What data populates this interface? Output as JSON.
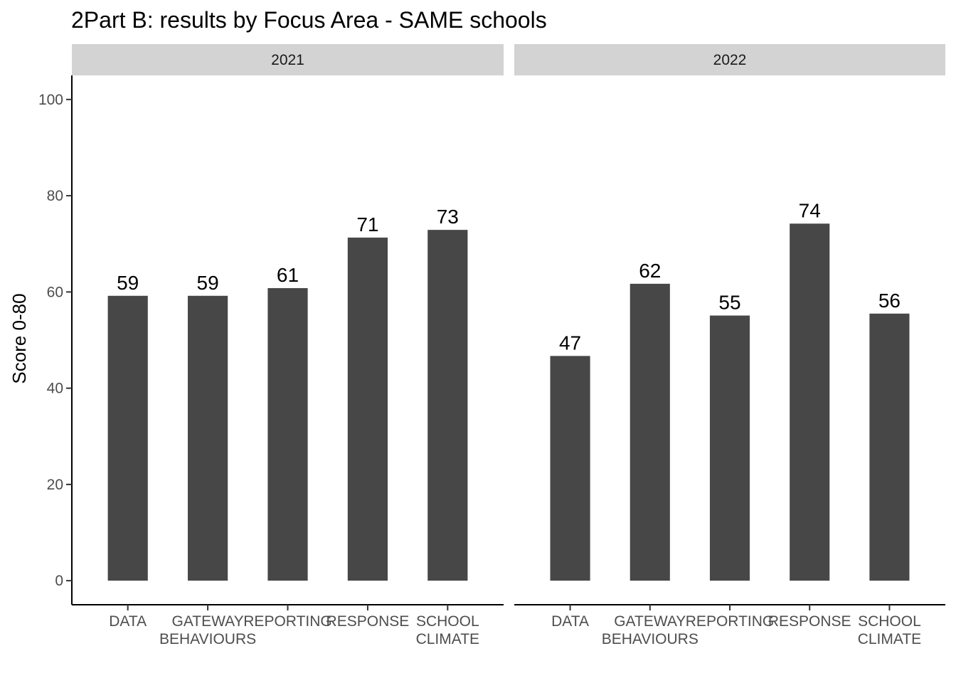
{
  "chart_data": {
    "type": "bar",
    "title": "2Part B: results by Focus Area - SAME schools",
    "ylabel": "Score 0-80",
    "xlabel": "",
    "ylim": [
      -5,
      105
    ],
    "yticks": [
      0,
      20,
      40,
      60,
      80,
      100
    ],
    "grid": false,
    "bar_color": "#474747",
    "strip_color": "#d3d3d3",
    "categories": [
      [
        "DATA"
      ],
      [
        "GATEWAY",
        "BEHAVIOURS"
      ],
      [
        "REPORTING"
      ],
      [
        "RESPONSE"
      ],
      [
        "SCHOOL",
        "CLIMATE"
      ]
    ],
    "facets": [
      {
        "name": "2021",
        "values": [
          59.2,
          59.2,
          60.8,
          71.3,
          72.9
        ],
        "labels": [
          "59",
          "59",
          "61",
          "71",
          "73"
        ]
      },
      {
        "name": "2022",
        "values": [
          46.7,
          61.7,
          55.1,
          74.2,
          55.5
        ],
        "labels": [
          "47",
          "62",
          "55",
          "74",
          "56"
        ]
      }
    ]
  }
}
